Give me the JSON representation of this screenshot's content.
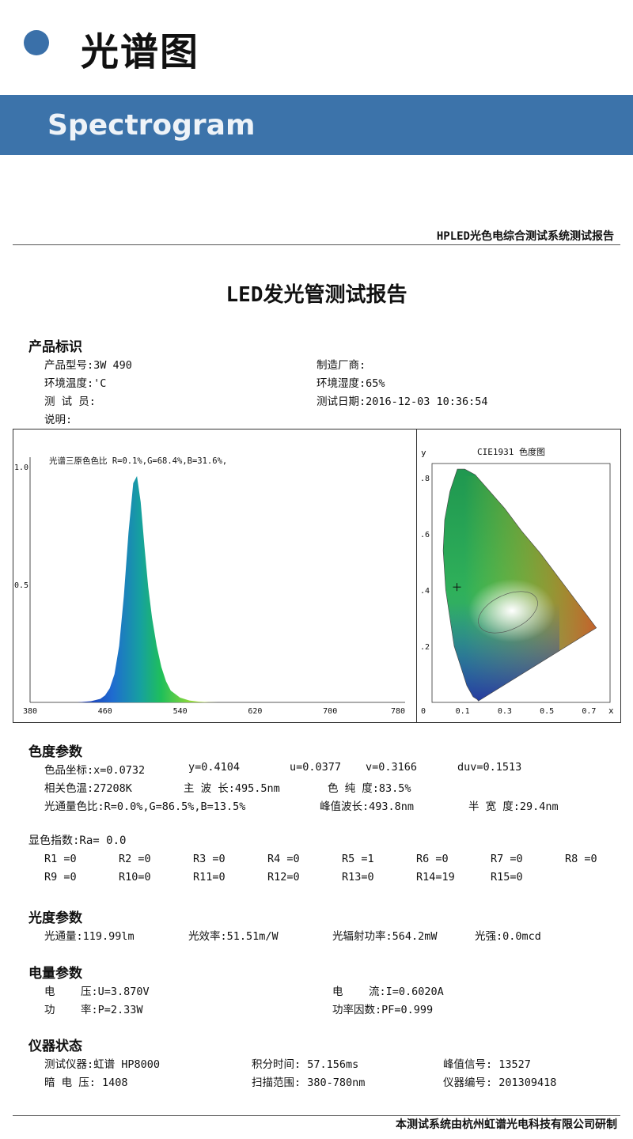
{
  "header": {
    "title_cn": "光谱图",
    "title_en": "Spectrogram",
    "accent": "#3a70a9"
  },
  "report": {
    "system_name": "HPLED光色电综合测试系统测试报告",
    "title": "LED发光管测试报告",
    "product": {
      "heading": "产品标识",
      "model": "产品型号:3W 490",
      "maker": "制造厂商:",
      "temp": "环境温度:'C",
      "humidity": "环境湿度:65%",
      "tester": "测 试 员:",
      "date": "测试日期:2016-12-03 10:36:54",
      "note": "说明:"
    },
    "color": {
      "heading": "色度参数",
      "row1": [
        "色品坐标:x=0.0732",
        "y=0.4104",
        "u=0.0377",
        "v=0.3166",
        "duv=0.1513"
      ],
      "row2": [
        "相关色温:27208K",
        "主 波 长:495.5nm",
        "色 纯 度:83.5%"
      ],
      "row3": [
        "光通量色比:R=0.0%,G=86.5%,B=13.5%",
        "峰值波长:493.8nm",
        "半 宽 度:29.4nm"
      ]
    },
    "cri": {
      "heading": "显色指数:Ra=  0.0",
      "row1": [
        "R1 =0",
        "R2 =0",
        "R3 =0",
        "R4 =0",
        "R5 =1",
        "R6 =0",
        "R7 =0",
        "R8 =0"
      ],
      "row2": [
        "R9 =0",
        "R10=0",
        "R11=0",
        "R12=0",
        "R13=0",
        "R14=19",
        "R15=0"
      ]
    },
    "photo": {
      "heading": "光度参数",
      "row": [
        "光通量:119.99lm",
        "光效率:51.51m/W",
        "光辐射功率:564.2mW",
        "光强:0.0mcd"
      ]
    },
    "elec": {
      "heading": "电量参数",
      "voltage": "电    压:U=3.870V",
      "current": "电    流:I=0.6020A",
      "power": "功    率:P=2.33W",
      "pf": "功率因数:PF=0.999"
    },
    "instrument": {
      "heading": "仪器状态",
      "row1": [
        "测试仪器:虹谱 HP8000",
        "积分时间: 57.156ms",
        "峰值信号: 13527"
      ],
      "row2": [
        "暗 电 压: 1408",
        "扫描范围: 380-780nm",
        "仪器编号: 201309418"
      ]
    },
    "footer": "本测试系统由杭州虹谱光电科技有限公司研制"
  },
  "chart_data": [
    {
      "type": "area",
      "title": "光谱三原色色比  R=0.1%,G=68.4%,B=31.6%,",
      "x": [
        380,
        430,
        445,
        455,
        460,
        465,
        470,
        475,
        480,
        485,
        490,
        494,
        498,
        502,
        506,
        510,
        515,
        520,
        525,
        530,
        540,
        550,
        560,
        570,
        580,
        600,
        650,
        780
      ],
      "y": [
        0,
        0,
        0.005,
        0.015,
        0.03,
        0.06,
        0.12,
        0.24,
        0.45,
        0.72,
        0.93,
        0.96,
        0.85,
        0.66,
        0.49,
        0.36,
        0.24,
        0.15,
        0.09,
        0.05,
        0.02,
        0.008,
        0.003,
        0.001,
        0,
        0,
        0,
        0
      ],
      "xlim": [
        380,
        780
      ],
      "ylim": [
        0,
        1.0
      ],
      "xticks": [
        "380",
        "460",
        "540",
        "620",
        "700",
        "780"
      ],
      "yticks": [
        "1.0",
        "0.5"
      ]
    },
    {
      "type": "scatter",
      "title": "CIE1931 色度图",
      "xlabel": "x",
      "ylabel": "y",
      "xlim": [
        0,
        0.8
      ],
      "ylim": [
        0,
        0.85
      ],
      "xticks": [
        "0",
        "0.1",
        "0.3",
        "0.5",
        "0.7"
      ],
      "yticks": [
        ".8",
        ".6",
        ".4",
        ".2"
      ],
      "point": {
        "x": 0.0732,
        "y": 0.4104
      }
    }
  ]
}
